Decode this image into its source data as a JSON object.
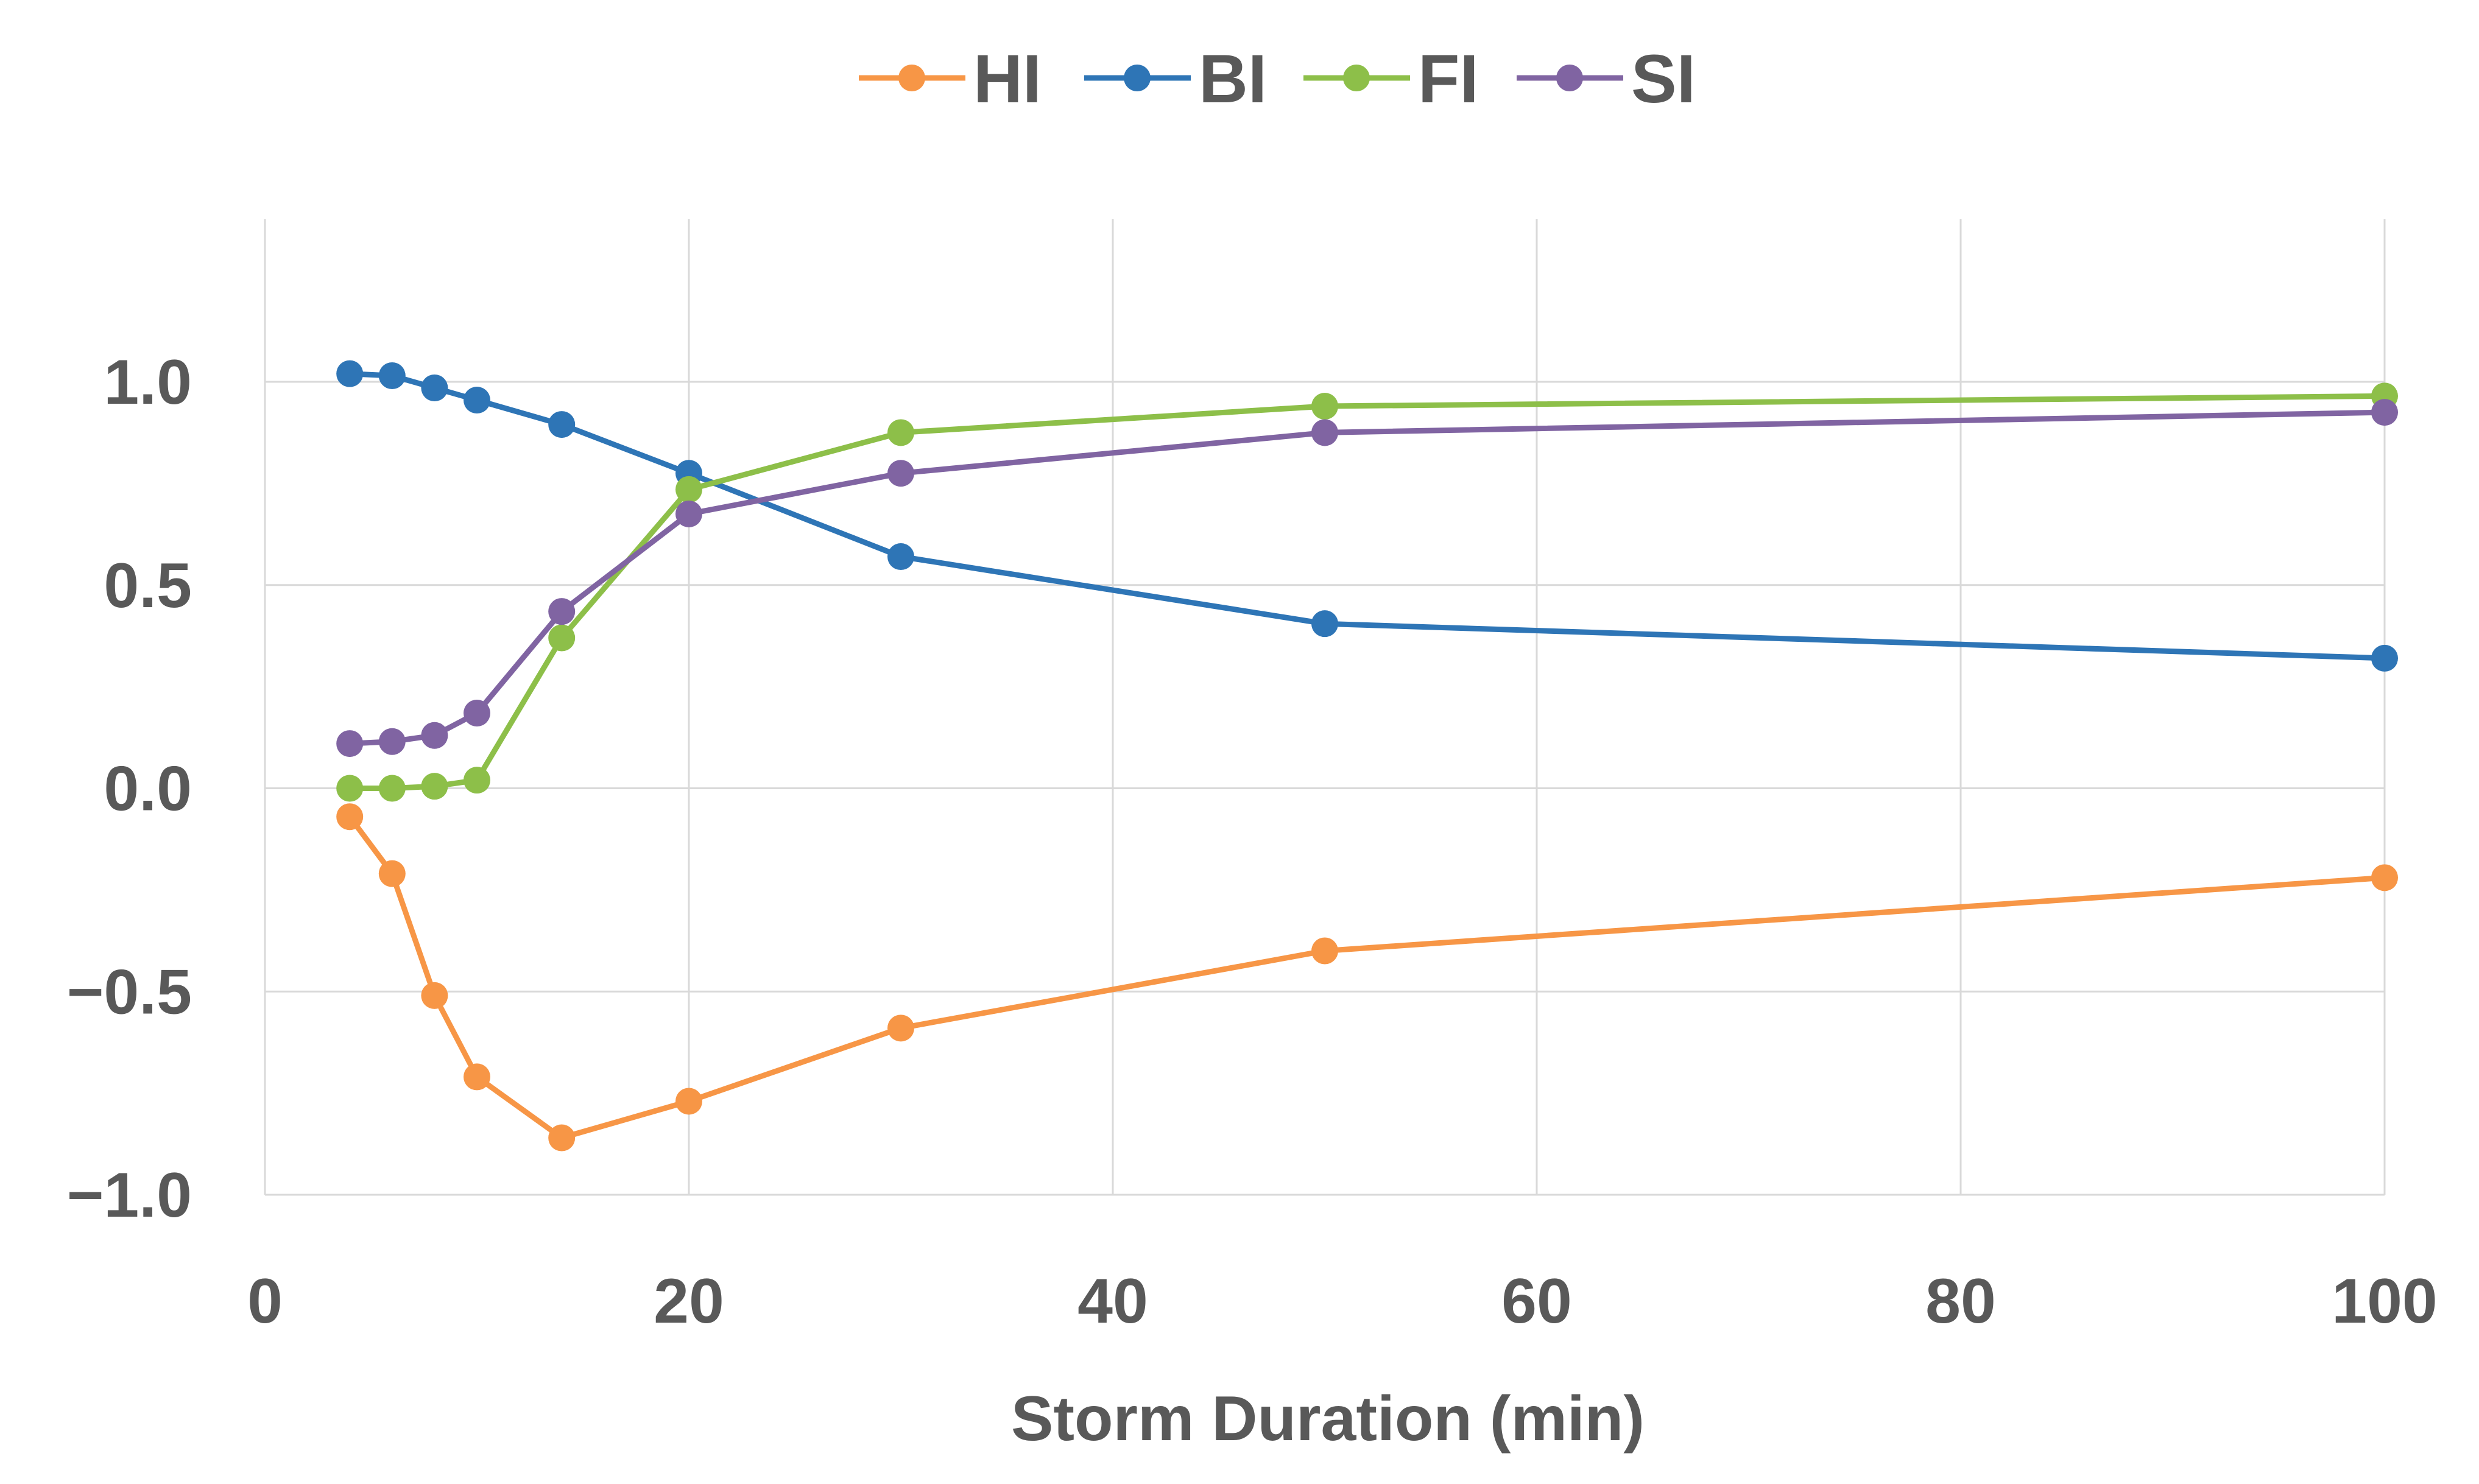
{
  "chart_data": {
    "type": "line",
    "title": "",
    "xlabel": "Storm Duration (min)",
    "ylabel": "",
    "xlim": [
      0,
      100
    ],
    "ylim": [
      -1.0,
      1.4
    ],
    "x_ticks": [
      0,
      20,
      40,
      60,
      80,
      100
    ],
    "x_tick_labels": [
      "0",
      "20",
      "40",
      "60",
      "80",
      "100"
    ],
    "y_ticks": [
      -1.0,
      -0.5,
      0.0,
      0.5,
      1.0
    ],
    "y_tick_labels": [
      "−1.0",
      "−0.5",
      "0.0",
      "0.5",
      "1.0"
    ],
    "grid": true,
    "legend_position": "top-center",
    "x": [
      4,
      6,
      8,
      10,
      14,
      20,
      30,
      50,
      100
    ],
    "series": [
      {
        "name": "HI",
        "color": "#F79646",
        "values": [
          -0.07,
          -0.21,
          -0.51,
          -0.71,
          -0.86,
          -0.77,
          -0.59,
          -0.4,
          -0.22
        ]
      },
      {
        "name": "BI",
        "color": "#2E75B6",
        "values": [
          1.02,
          1.015,
          0.985,
          0.955,
          0.895,
          0.775,
          0.57,
          0.405,
          0.32
        ]
      },
      {
        "name": "FI",
        "color": "#8DBF49",
        "values": [
          0.0,
          0.0,
          0.005,
          0.02,
          0.37,
          0.735,
          0.875,
          0.94,
          0.965
        ]
      },
      {
        "name": "SI",
        "color": "#8064A2",
        "values": [
          0.11,
          0.115,
          0.13,
          0.185,
          0.435,
          0.675,
          0.775,
          0.875,
          0.925
        ]
      }
    ]
  }
}
